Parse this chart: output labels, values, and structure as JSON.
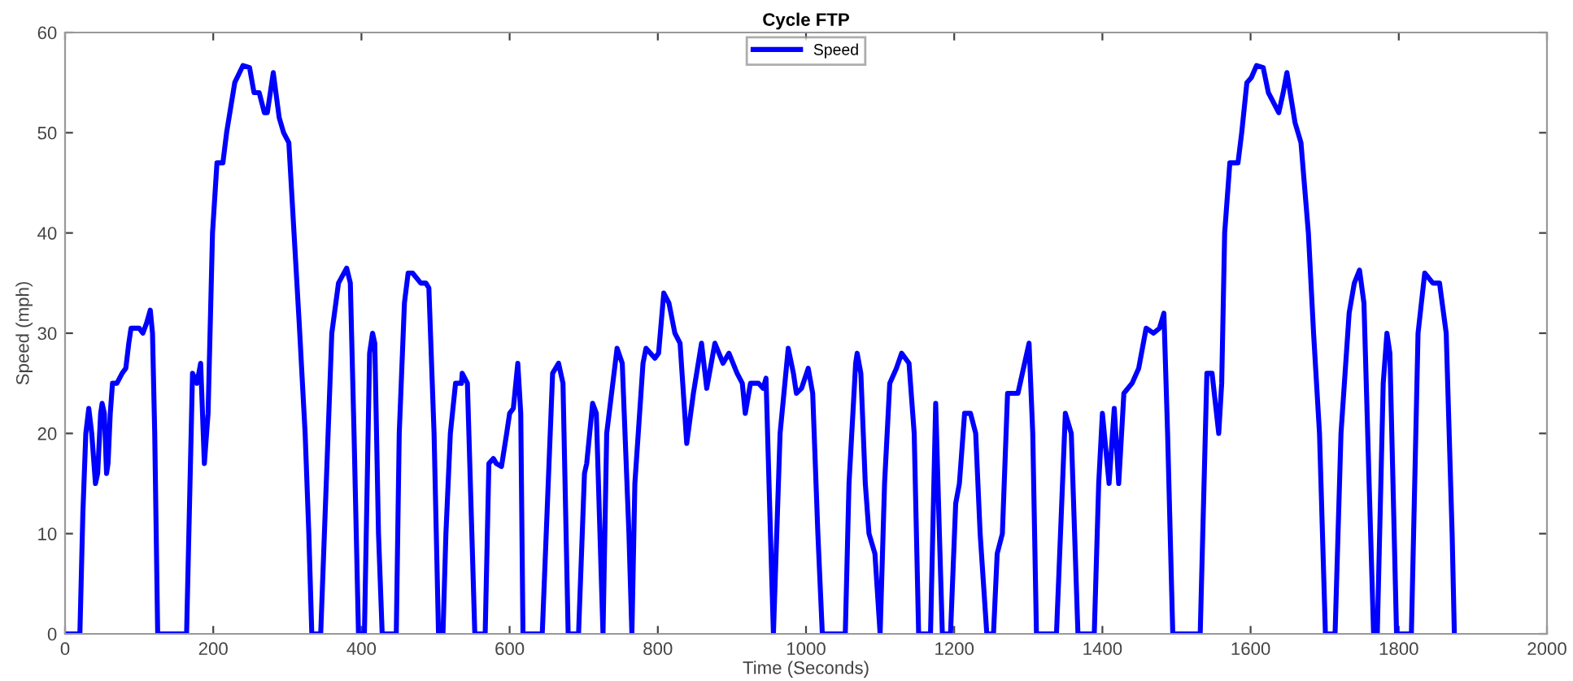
{
  "chart_data": {
    "type": "line",
    "title": "Cycle FTP",
    "xlabel": "Time (Seconds)",
    "ylabel": "Speed (mph)",
    "xlim": [
      0,
      2000
    ],
    "ylim": [
      0,
      60
    ],
    "xticks": [
      0,
      200,
      400,
      600,
      800,
      1000,
      1200,
      1400,
      1600,
      1800,
      2000
    ],
    "yticks": [
      0,
      10,
      20,
      30,
      40,
      50,
      60
    ],
    "grid": false,
    "legend": "top",
    "marker": "none",
    "line_style": "solid",
    "series": [
      {
        "name": "Speed",
        "color": "#0000ff",
        "x": [
          0,
          20,
          24,
          28,
          32,
          36,
          41,
          44,
          48,
          50,
          53,
          56,
          58,
          61,
          64,
          70,
          77,
          82,
          86,
          89,
          100,
          105,
          110,
          115,
          118,
          121,
          125,
          164,
          172,
          178,
          183,
          188,
          193,
          199,
          205,
          213,
          218,
          229,
          240,
          249,
          255,
          262,
          269,
          273,
          281,
          289,
          295,
          302,
          309,
          316,
          324,
          329,
          333,
          345,
          360,
          369,
          380,
          385,
          390,
          396,
          404,
          411,
          415,
          418,
          423,
          428,
          447,
          451,
          458,
          463,
          469,
          480,
          487,
          491,
          498,
          504,
          510,
          514,
          520,
          527,
          535,
          536,
          543,
          549,
          553,
          567,
          572,
          578,
          582,
          589,
          596,
          600,
          605,
          611,
          615,
          618,
          644,
          658,
          666,
          672,
          679,
          693,
          701,
          704,
          712,
          717,
          726,
          731,
          745,
          752,
          761,
          765,
          769,
          780,
          784,
          796,
          801,
          808,
          815,
          823,
          830,
          839,
          848,
          859,
          866,
          877,
          888,
          896,
          907,
          914,
          918,
          925,
          936,
          942,
          946,
          952,
          956,
          965,
          976,
          983,
          987,
          994,
          1003,
          1009,
          1016,
          1022,
          1053,
          1058,
          1067,
          1069,
          1074,
          1080,
          1085,
          1093,
          1100,
          1106,
          1113,
          1122,
          1129,
          1139,
          1146,
          1152,
          1168,
          1175,
          1180,
          1184,
          1195,
          1202,
          1207,
          1214,
          1222,
          1229,
          1235,
          1244,
          1253,
          1258,
          1265,
          1272,
          1286,
          1295,
          1301,
          1306,
          1311,
          1338,
          1350,
          1358,
          1367,
          1389,
          1395,
          1400,
          1409,
          1416,
          1422,
          1429,
          1440,
          1449,
          1459,
          1469,
          1477,
          1483,
          1488,
          1495,
          1532,
          1541,
          1548,
          1557,
          1561,
          1565,
          1572,
          1583,
          1588,
          1595,
          1601,
          1608,
          1617,
          1624,
          1638,
          1644,
          1649,
          1660,
          1668,
          1678,
          1685,
          1693,
          1701,
          1714,
          1722,
          1733,
          1740,
          1747,
          1753,
          1760,
          1766,
          1771,
          1779,
          1784,
          1788,
          1797,
          1817,
          1826,
          1835,
          1846,
          1855,
          1864,
          1872,
          1875
        ],
        "values": [
          0,
          0,
          12,
          20,
          22.5,
          20,
          15,
          16,
          22,
          23,
          22,
          16,
          17,
          22,
          25,
          25,
          26,
          26.5,
          29,
          30.5,
          30.5,
          30,
          31,
          32.3,
          30,
          20,
          0,
          0,
          26,
          25,
          27,
          17,
          22,
          40,
          47,
          47,
          50,
          55,
          56.7,
          56.5,
          54,
          54,
          52,
          52,
          56,
          51.5,
          50,
          49,
          40,
          31,
          20,
          10,
          0,
          0,
          30,
          35,
          36.5,
          35,
          20,
          0,
          0,
          28,
          30,
          29,
          10,
          0,
          0,
          20,
          33,
          36,
          36,
          35,
          35,
          34.5,
          20,
          0,
          0,
          10,
          20,
          25,
          25,
          26,
          25,
          10,
          0,
          0,
          17,
          17.5,
          17,
          16.7,
          20,
          22,
          22.5,
          27,
          22,
          0,
          0,
          26,
          27,
          25,
          0,
          0,
          16,
          17,
          23,
          22,
          0,
          20,
          28.5,
          27,
          10,
          0,
          15,
          27,
          28.5,
          27.5,
          28,
          34,
          33,
          30,
          29,
          19,
          24,
          29,
          24.5,
          29,
          27,
          28,
          26,
          25,
          22,
          25,
          25,
          24.5,
          25.5,
          10,
          0,
          20,
          28.5,
          26,
          24,
          24.5,
          26.5,
          24,
          10,
          0,
          0,
          15,
          27,
          28,
          26,
          15,
          10,
          8,
          0,
          15,
          25,
          26.5,
          28,
          27,
          20,
          0,
          0,
          23,
          10,
          0,
          0,
          13,
          15,
          22,
          22,
          20,
          10,
          0,
          0,
          8,
          10,
          24,
          24,
          27,
          29,
          20,
          0,
          0,
          22,
          20,
          0,
          0,
          15,
          22,
          15,
          22.5,
          15,
          24,
          25,
          26.5,
          30.5,
          30,
          30.5,
          32,
          20,
          0,
          0,
          26,
          26,
          20,
          25,
          40,
          47,
          47,
          50,
          55,
          55.5,
          56.7,
          56.5,
          54,
          52,
          54,
          56,
          51,
          49,
          40,
          30,
          20,
          0,
          0,
          20,
          32,
          35,
          36.3,
          33,
          15,
          0,
          0,
          25,
          30,
          28,
          0,
          0,
          30,
          36,
          35,
          35,
          30,
          10,
          0
        ]
      }
    ]
  }
}
